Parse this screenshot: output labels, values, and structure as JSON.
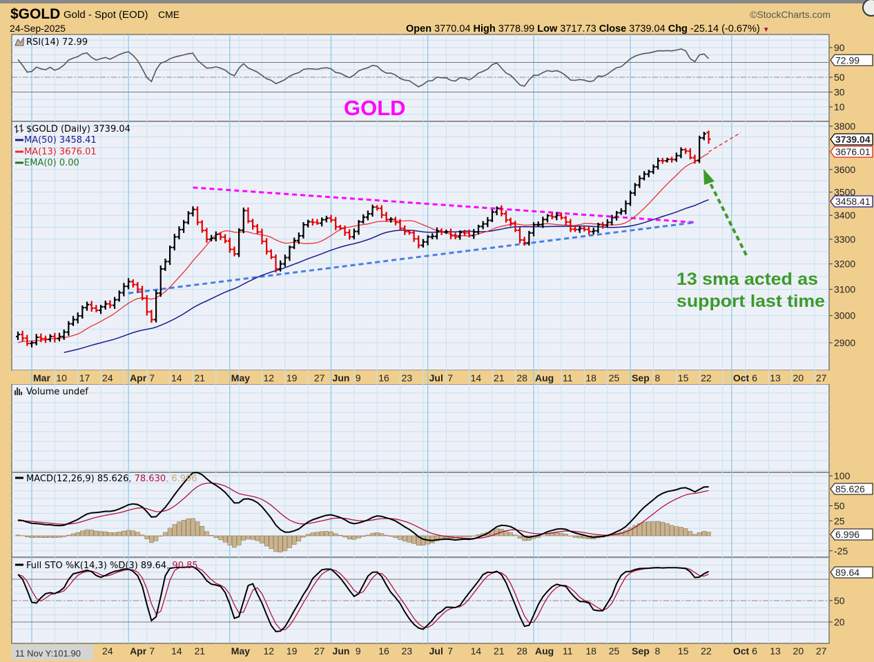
{
  "header": {
    "symbol": "$GOLD",
    "name": "Gold - Spot (EOD)",
    "exchange": "CME",
    "date": "24-Sep-2025",
    "brand": "©StockCharts.com",
    "open_label": "Open",
    "open": "3770.04",
    "high_label": "High",
    "high": "3778.99",
    "low_label": "Low",
    "low": "3717.73",
    "close_label": "Close",
    "close": "3739.04",
    "chg_label": "Chg",
    "chg": "-25.14 (-0.67%)",
    "down_arrow": "▼"
  },
  "panels": {
    "rsi": {
      "label": "RSI(14) 72.99",
      "value_box": "72.99"
    },
    "price": {
      "label": "$GOLD (Daily) 3739.04",
      "ma50": "MA(50) 3458.41",
      "ma13": "MA(13) 3676.01",
      "ema0": "EMA(0) 0.00",
      "close_box": "3739.04",
      "ma13_box": "3676.01",
      "ma50_box": "3458.41"
    },
    "volume": {
      "label": "Volume undef"
    },
    "macd": {
      "label": "MACD(12,26,9) 85.626",
      "signal": ", 78.630",
      "hist": ", 6.996",
      "value_box": "85.626",
      "hist_box": "6.996"
    },
    "sto": {
      "label": "Full STO %K(14,3) %D(3) 89.64",
      "d": ", 90.85",
      "value_box": "89.64"
    }
  },
  "annotations": {
    "title": "GOLD",
    "note_line1": "13 sma acted as",
    "note_line2": "support last time"
  },
  "cursor_readout": "11 Nov Y:101.90",
  "colors": {
    "up": "#000000",
    "down": "#e00000",
    "ma50": "#1a1a8c",
    "ma13": "#e83030",
    "magenta": "#ff00ff",
    "blue_trend": "#4a7fe0",
    "note": "#3c9a2a",
    "hist": "#c9b48e"
  },
  "chart_data": {
    "type": "line",
    "title": "$GOLD Gold - Spot (EOD) CME",
    "price_scale": "log",
    "ylim": [
      2780,
      3840
    ],
    "price_ticks": [
      3800,
      3600,
      3500,
      3400,
      3300,
      3200,
      3100,
      3000,
      2900
    ],
    "rsi_ticks": [
      90,
      50,
      30,
      10
    ],
    "macd_ticks": [
      100,
      50,
      25,
      -25
    ],
    "sto_ticks": [
      50,
      20
    ],
    "x_ticks": [
      {
        "label": "Mar",
        "date": "2025-03-03",
        "bold": true
      },
      {
        "label": "10",
        "date": "2025-03-10"
      },
      {
        "label": "17",
        "date": "2025-03-17"
      },
      {
        "label": "24",
        "date": "2025-03-24"
      },
      {
        "label": "Apr",
        "date": "2025-04-01",
        "bold": true
      },
      {
        "label": "7",
        "date": "2025-04-07"
      },
      {
        "label": "14",
        "date": "2025-04-14"
      },
      {
        "label": "21",
        "date": "2025-04-21"
      },
      {
        "label": "May",
        "date": "2025-05-01",
        "bold": true
      },
      {
        "label": "12",
        "date": "2025-05-12"
      },
      {
        "label": "19",
        "date": "2025-05-19"
      },
      {
        "label": "27",
        "date": "2025-05-27"
      },
      {
        "label": "Jun",
        "date": "2025-06-02",
        "bold": true
      },
      {
        "label": "9",
        "date": "2025-06-09"
      },
      {
        "label": "16",
        "date": "2025-06-16"
      },
      {
        "label": "23",
        "date": "2025-06-23"
      },
      {
        "label": "Jul",
        "date": "2025-07-01",
        "bold": true
      },
      {
        "label": "7",
        "date": "2025-07-07"
      },
      {
        "label": "14",
        "date": "2025-07-14"
      },
      {
        "label": "21",
        "date": "2025-07-21"
      },
      {
        "label": "28",
        "date": "2025-07-28"
      },
      {
        "label": "Aug",
        "date": "2025-08-01",
        "bold": true
      },
      {
        "label": "11",
        "date": "2025-08-11"
      },
      {
        "label": "18",
        "date": "2025-08-18"
      },
      {
        "label": "25",
        "date": "2025-08-25"
      },
      {
        "label": "Sep",
        "date": "2025-09-01",
        "bold": true
      },
      {
        "label": "8",
        "date": "2025-09-08"
      },
      {
        "label": "15",
        "date": "2025-09-15"
      },
      {
        "label": "22",
        "date": "2025-09-22"
      },
      {
        "label": "Oct",
        "date": "2025-10-01",
        "bold": true
      },
      {
        "label": "6",
        "date": "2025-10-06"
      },
      {
        "label": "13",
        "date": "2025-10-13"
      },
      {
        "label": "20",
        "date": "2025-10-20"
      },
      {
        "label": "27",
        "date": "2025-10-27"
      }
    ],
    "bottom_x_ticks_from": "24",
    "close_anchors": [
      [
        "2025-02-26",
        2930
      ],
      [
        "2025-03-03",
        2900
      ],
      [
        "2025-03-05",
        2915
      ],
      [
        "2025-03-10",
        2915
      ],
      [
        "2025-03-14",
        2985
      ],
      [
        "2025-03-18",
        3030
      ],
      [
        "2025-03-21",
        3020
      ],
      [
        "2025-03-27",
        3060
      ],
      [
        "2025-04-01",
        3130
      ],
      [
        "2025-04-03",
        3100
      ],
      [
        "2025-04-08",
        2985
      ],
      [
        "2025-04-10",
        3180
      ],
      [
        "2025-04-16",
        3340
      ],
      [
        "2025-04-21",
        3425
      ],
      [
        "2025-04-24",
        3300
      ],
      [
        "2025-04-28",
        3320
      ],
      [
        "2025-05-02",
        3240
      ],
      [
        "2025-05-06",
        3420
      ],
      [
        "2025-05-09",
        3330
      ],
      [
        "2025-05-15",
        3180
      ],
      [
        "2025-05-16",
        3200
      ],
      [
        "2025-05-23",
        3360
      ],
      [
        "2025-06-02",
        3380
      ],
      [
        "2025-06-06",
        3310
      ],
      [
        "2025-06-13",
        3435
      ],
      [
        "2025-06-20",
        3370
      ],
      [
        "2025-06-27",
        3275
      ],
      [
        "2025-07-03",
        3335
      ],
      [
        "2025-07-09",
        3310
      ],
      [
        "2025-07-15",
        3330
      ],
      [
        "2025-07-22",
        3430
      ],
      [
        "2025-07-30",
        3285
      ],
      [
        "2025-08-01",
        3360
      ],
      [
        "2025-08-08",
        3400
      ],
      [
        "2025-08-14",
        3340
      ],
      [
        "2025-08-20",
        3335
      ],
      [
        "2025-08-25",
        3370
      ],
      [
        "2025-08-29",
        3450
      ],
      [
        "2025-09-03",
        3560
      ],
      [
        "2025-09-05",
        3590
      ],
      [
        "2025-09-09",
        3640
      ],
      [
        "2025-09-12",
        3645
      ],
      [
        "2025-09-16",
        3690
      ],
      [
        "2025-09-19",
        3640
      ],
      [
        "2025-09-22",
        3745
      ],
      [
        "2025-09-23",
        3764.18
      ],
      [
        "2025-09-24",
        3739.04
      ]
    ],
    "last_bar": {
      "date": "2025-09-24",
      "open": 3770.04,
      "high": 3778.99,
      "low": 3717.73,
      "close": 3739.04
    },
    "series": [
      {
        "name": "MA(50)",
        "last": 3458.41
      },
      {
        "name": "MA(13)",
        "last": 3676.01
      },
      {
        "name": "RSI(14)",
        "last": 72.99
      },
      {
        "name": "MACD",
        "last": 85.626
      },
      {
        "name": "Signal",
        "last": 78.63
      },
      {
        "name": "Histogram",
        "last": 6.996
      },
      {
        "name": "%K",
        "last": 89.64
      },
      {
        "name": "%D",
        "last": 90.85
      }
    ],
    "trendlines": [
      {
        "name": "upper-resistance",
        "color": "magenta",
        "from": [
          "2025-04-21",
          3520
        ],
        "to": [
          "2025-09-19",
          3370
        ]
      },
      {
        "name": "lower-support",
        "color": "blue",
        "from": [
          "2025-04-01",
          3085
        ],
        "to": [
          "2025-09-19",
          3370
        ]
      },
      {
        "name": "ma13-extension",
        "color": "red",
        "from": [
          "2025-09-24",
          3680
        ],
        "to": [
          "2025-10-03",
          3770
        ]
      }
    ]
  }
}
